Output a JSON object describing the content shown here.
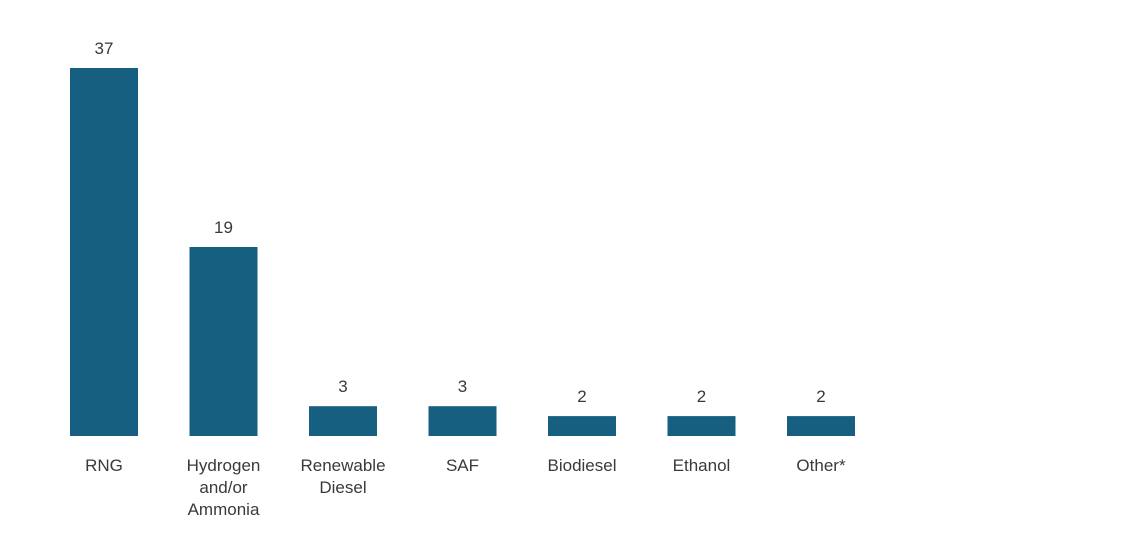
{
  "chart_data": {
    "type": "bar",
    "categories": [
      [
        "RNG"
      ],
      [
        "Hydrogen",
        "and/or",
        "Ammonia"
      ],
      [
        "Renewable",
        "Diesel"
      ],
      [
        "SAF"
      ],
      [
        "Biodiesel"
      ],
      [
        "Ethanol"
      ],
      [
        "Other*"
      ]
    ],
    "values": [
      37,
      19,
      3,
      3,
      2,
      2,
      2
    ],
    "data_labels": [
      "37",
      "19",
      "3",
      "3",
      "2",
      "2",
      "2"
    ],
    "ylim": [
      0,
      37
    ],
    "grid": false,
    "colors": {
      "bar": "#175f80",
      "text": "#3a3a3a"
    }
  }
}
